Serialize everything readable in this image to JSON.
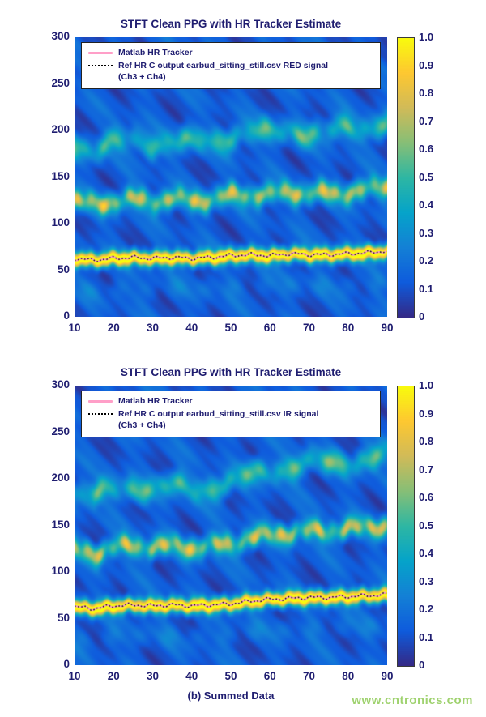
{
  "page": {
    "watermark": "www.cntronics.com",
    "watermark_color": "#9fd26f",
    "axis_text_color": "#1f1d70"
  },
  "chart_data": [
    {
      "type": "heatmap",
      "title": "STFT Clean PPG with HR Tracker Estimate",
      "xlabel": "",
      "ylabel": "",
      "xlim": [
        10,
        90
      ],
      "ylim": [
        0,
        300
      ],
      "grid": false,
      "x_ticks": [
        "10",
        "20",
        "30",
        "40",
        "50",
        "60",
        "70",
        "80",
        "90"
      ],
      "y_ticks": [
        "0",
        "50",
        "100",
        "150",
        "200",
        "250",
        "300"
      ],
      "colorbar": {
        "min": 0,
        "max": 1,
        "position": "right",
        "ticks": [
          "0",
          "0.1",
          "0.2",
          "0.3",
          "0.4",
          "0.5",
          "0.6",
          "0.7",
          "0.8",
          "0.9",
          "1.0"
        ]
      },
      "legend": [
        {
          "label": "Matlab HR Tracker",
          "color": "#ff9fc8",
          "style": "solid"
        },
        {
          "label": "Ref HR C output earbud_sitting_still.csv RED signal",
          "label2": "(Ch3 + Ch4)",
          "color": "#000000",
          "style": "dotted"
        }
      ],
      "hr_track": {
        "x": [
          10,
          15,
          20,
          25,
          30,
          35,
          40,
          45,
          50,
          55,
          60,
          65,
          70,
          75,
          80,
          85,
          90
        ],
        "y": [
          62,
          60,
          62,
          63,
          62,
          63,
          62,
          63,
          65,
          66,
          65,
          67,
          66,
          66,
          67,
          68,
          70
        ]
      },
      "harmonics": [
        {
          "multiple": 2,
          "intensity": 0.62
        },
        {
          "multiple": 3,
          "intensity": 0.4
        }
      ],
      "caption": ""
    },
    {
      "type": "heatmap",
      "title": "STFT Clean PPG with HR Tracker Estimate",
      "xlabel": "",
      "ylabel": "",
      "xlim": [
        10,
        90
      ],
      "ylim": [
        0,
        300
      ],
      "grid": false,
      "x_ticks": [
        "10",
        "20",
        "30",
        "40",
        "50",
        "60",
        "70",
        "80",
        "90"
      ],
      "y_ticks": [
        "0",
        "50",
        "100",
        "150",
        "200",
        "250",
        "300"
      ],
      "colorbar": {
        "min": 0,
        "max": 1,
        "position": "right",
        "ticks": [
          "0",
          "0.1",
          "0.2",
          "0.3",
          "0.4",
          "0.5",
          "0.6",
          "0.7",
          "0.8",
          "0.9",
          "1.0"
        ]
      },
      "legend": [
        {
          "label": "Matlab HR Tracker",
          "color": "#ff9fc8",
          "style": "solid"
        },
        {
          "label": "Ref HR C output earbud_sitting_still.csv IR signal",
          "label2": "(Ch3 + Ch4)",
          "color": "#000000",
          "style": "dotted"
        }
      ],
      "hr_track": {
        "x": [
          10,
          15,
          20,
          25,
          30,
          35,
          40,
          45,
          50,
          55,
          60,
          65,
          70,
          75,
          80,
          85,
          90
        ],
        "y": [
          62,
          60,
          63,
          64,
          63,
          64,
          63,
          64,
          65,
          68,
          70,
          71,
          72,
          72,
          73,
          74,
          75
        ]
      },
      "harmonics": [
        {
          "multiple": 2,
          "intensity": 0.62
        },
        {
          "multiple": 3,
          "intensity": 0.42
        }
      ],
      "caption": "(b) Summed Data"
    }
  ]
}
